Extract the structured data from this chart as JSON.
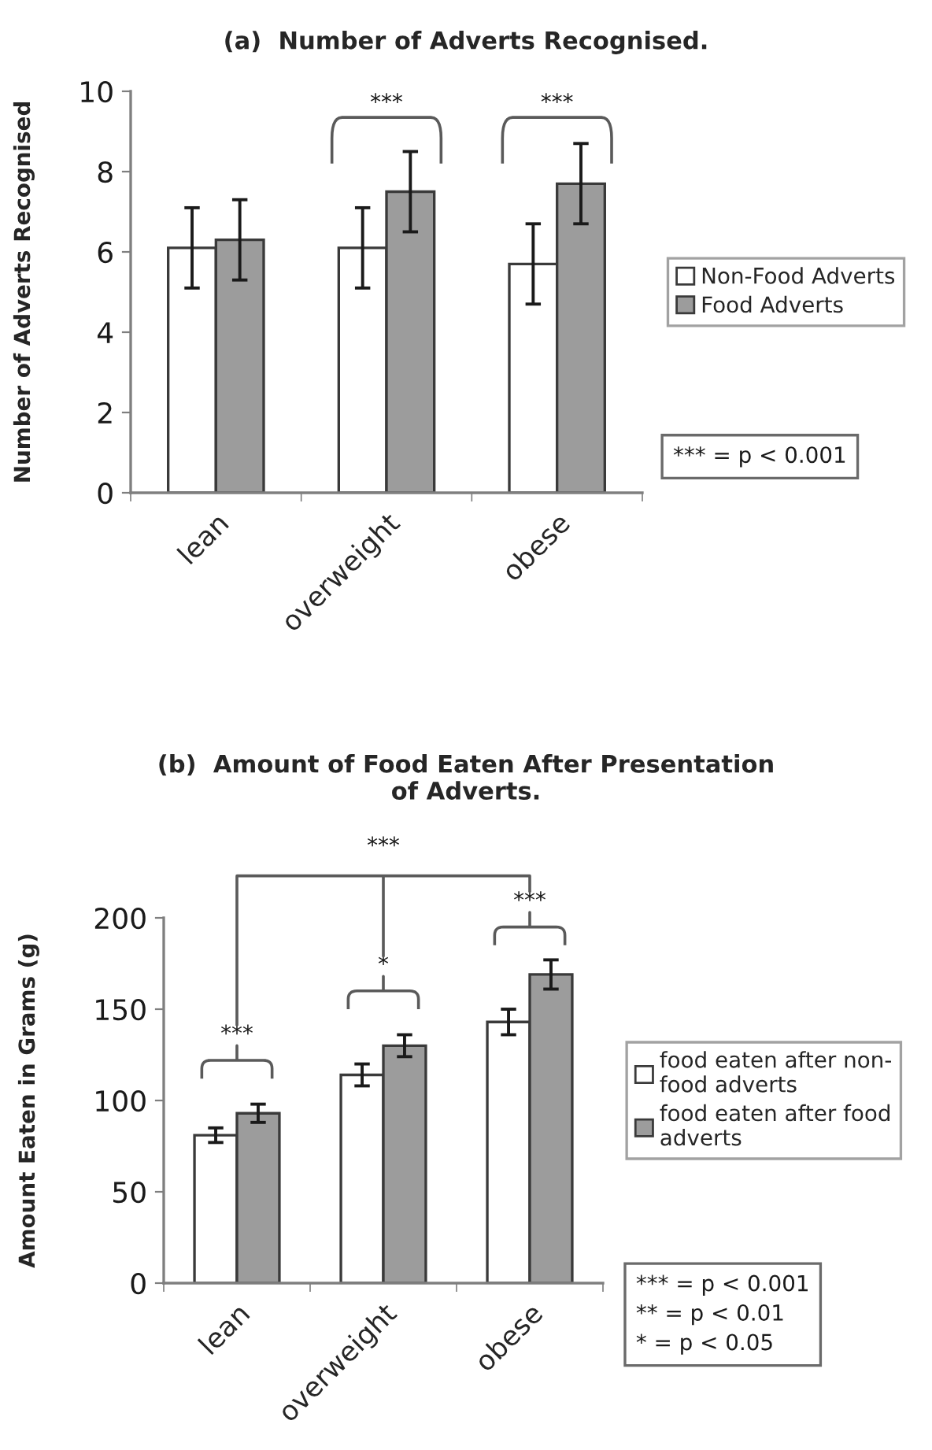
{
  "chart_data": [
    {
      "type": "bar",
      "title": "(a)  Number of Adverts Recognised.",
      "ylabel": "Number of Adverts Recognised",
      "categories": [
        "lean",
        "overweight",
        "obese"
      ],
      "series": [
        {
          "name": "Non-Food Adverts",
          "color": "#ffffff",
          "values": [
            6.1,
            6.1,
            5.7
          ],
          "errors": [
            1.0,
            1.0,
            1.0
          ]
        },
        {
          "name": "Food Adverts",
          "color": "#9c9c9c",
          "values": [
            6.3,
            7.5,
            7.7
          ],
          "errors": [
            1.0,
            1.0,
            1.0
          ]
        }
      ],
      "ylim": [
        0,
        10
      ],
      "yticks": [
        0,
        2,
        4,
        6,
        8,
        10
      ],
      "grid": false,
      "legend": "right",
      "annotations": [
        "***",
        "***",
        "*** = p < 0.001"
      ]
    },
    {
      "type": "bar",
      "title": "(b)  Amount of Food Eaten After Presentation\nof Adverts.",
      "ylabel": "Amount Eaten in Grams (g)",
      "categories": [
        "lean",
        "overweight",
        "obese"
      ],
      "series": [
        {
          "name": "food eaten after non-\nfood adverts",
          "color": "#ffffff",
          "values": [
            81,
            114,
            143
          ],
          "errors": [
            4,
            6,
            7
          ]
        },
        {
          "name": "food eaten after food\nadverts",
          "color": "#9c9c9c",
          "values": [
            93,
            130,
            169
          ],
          "errors": [
            5,
            6,
            8
          ]
        }
      ],
      "ylim": [
        0,
        200
      ],
      "yticks": [
        0,
        50,
        100,
        150,
        200
      ],
      "grid": false,
      "legend": "right",
      "annotations": [
        "***",
        "***",
        "*",
        "***",
        "*** = p < 0.001\n** = p < 0.01\n* = p < 0.05"
      ]
    }
  ]
}
